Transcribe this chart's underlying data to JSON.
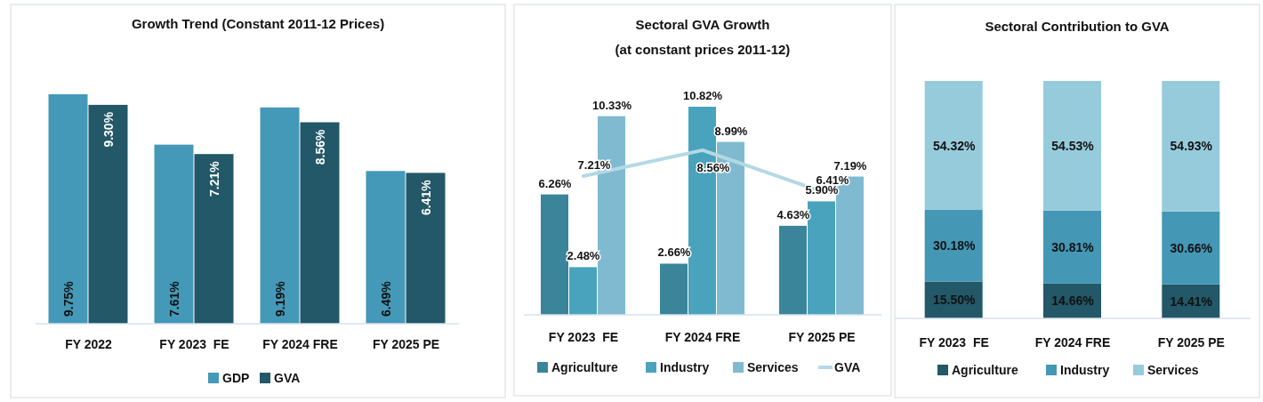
{
  "chart_data": [
    {
      "type": "bar",
      "title": "Growth Trend (Constant 2011-12 Prices)",
      "categories": [
        "FY 2022",
        "FY 2023  FE",
        "FY 2024 FRE",
        "FY 2025 PE"
      ],
      "legend": "bottom",
      "series": [
        {
          "name": "GDP",
          "color": "#4499b8",
          "values": [
            9.75,
            7.61,
            9.19,
            6.49
          ],
          "value_labels": [
            "9.75%",
            "7.61%",
            "9.19%",
            "6.49%"
          ]
        },
        {
          "name": "GVA",
          "color": "#225867",
          "values": [
            9.3,
            7.21,
            8.56,
            6.41
          ],
          "value_labels": [
            "9.30%",
            "7.21%",
            "8.56%",
            "6.41%"
          ]
        }
      ]
    },
    {
      "type": "bar",
      "title": "Sectoral GVA Growth",
      "subtitle": "(at constant prices 2011-12)",
      "categories": [
        "FY 2023  FE",
        "FY 2024 FRE",
        "FY 2025 PE"
      ],
      "legend": "bottom",
      "series": [
        {
          "name": "Agriculture",
          "color": "#3a8599",
          "values": [
            6.26,
            2.66,
            4.63
          ],
          "value_labels": [
            "6.26%",
            "2.66%",
            "4.63%"
          ]
        },
        {
          "name": "Industry",
          "color": "#4aa3bc",
          "values": [
            2.48,
            10.82,
            5.9
          ],
          "value_labels": [
            "2.48%",
            "10.82%",
            "5.90%"
          ]
        },
        {
          "name": "Services",
          "color": "#7fbad0",
          "values": [
            10.33,
            8.99,
            7.19
          ],
          "value_labels": [
            "10.33%",
            "8.99%",
            "7.19%"
          ]
        },
        {
          "name": "GVA",
          "type": "line",
          "color": "#b4d8e4",
          "values": [
            7.21,
            8.56,
            6.41
          ],
          "value_labels": [
            "7.21%",
            "8.56%",
            "6.41%"
          ]
        }
      ]
    },
    {
      "type": "bar",
      "title": "Sectoral Contribution to GVA",
      "categories": [
        "FY 2023  FE",
        "FY 2024 FRE",
        "FY 2025 PE"
      ],
      "stacked": true,
      "legend": "bottom",
      "series": [
        {
          "name": "Agriculture",
          "color": "#225867",
          "values": [
            15.5,
            14.66,
            14.41
          ],
          "value_labels": [
            "15.50%",
            "14.66%",
            "14.41%"
          ]
        },
        {
          "name": "Industry",
          "color": "#4497b5",
          "values": [
            30.18,
            30.81,
            30.66
          ],
          "value_labels": [
            "30.18%",
            "30.81%",
            "30.66%"
          ]
        },
        {
          "name": "Services",
          "color": "#96cbdc",
          "values": [
            54.32,
            54.53,
            54.93
          ],
          "value_labels": [
            "54.32%",
            "54.53%",
            "54.93%"
          ]
        }
      ]
    }
  ]
}
